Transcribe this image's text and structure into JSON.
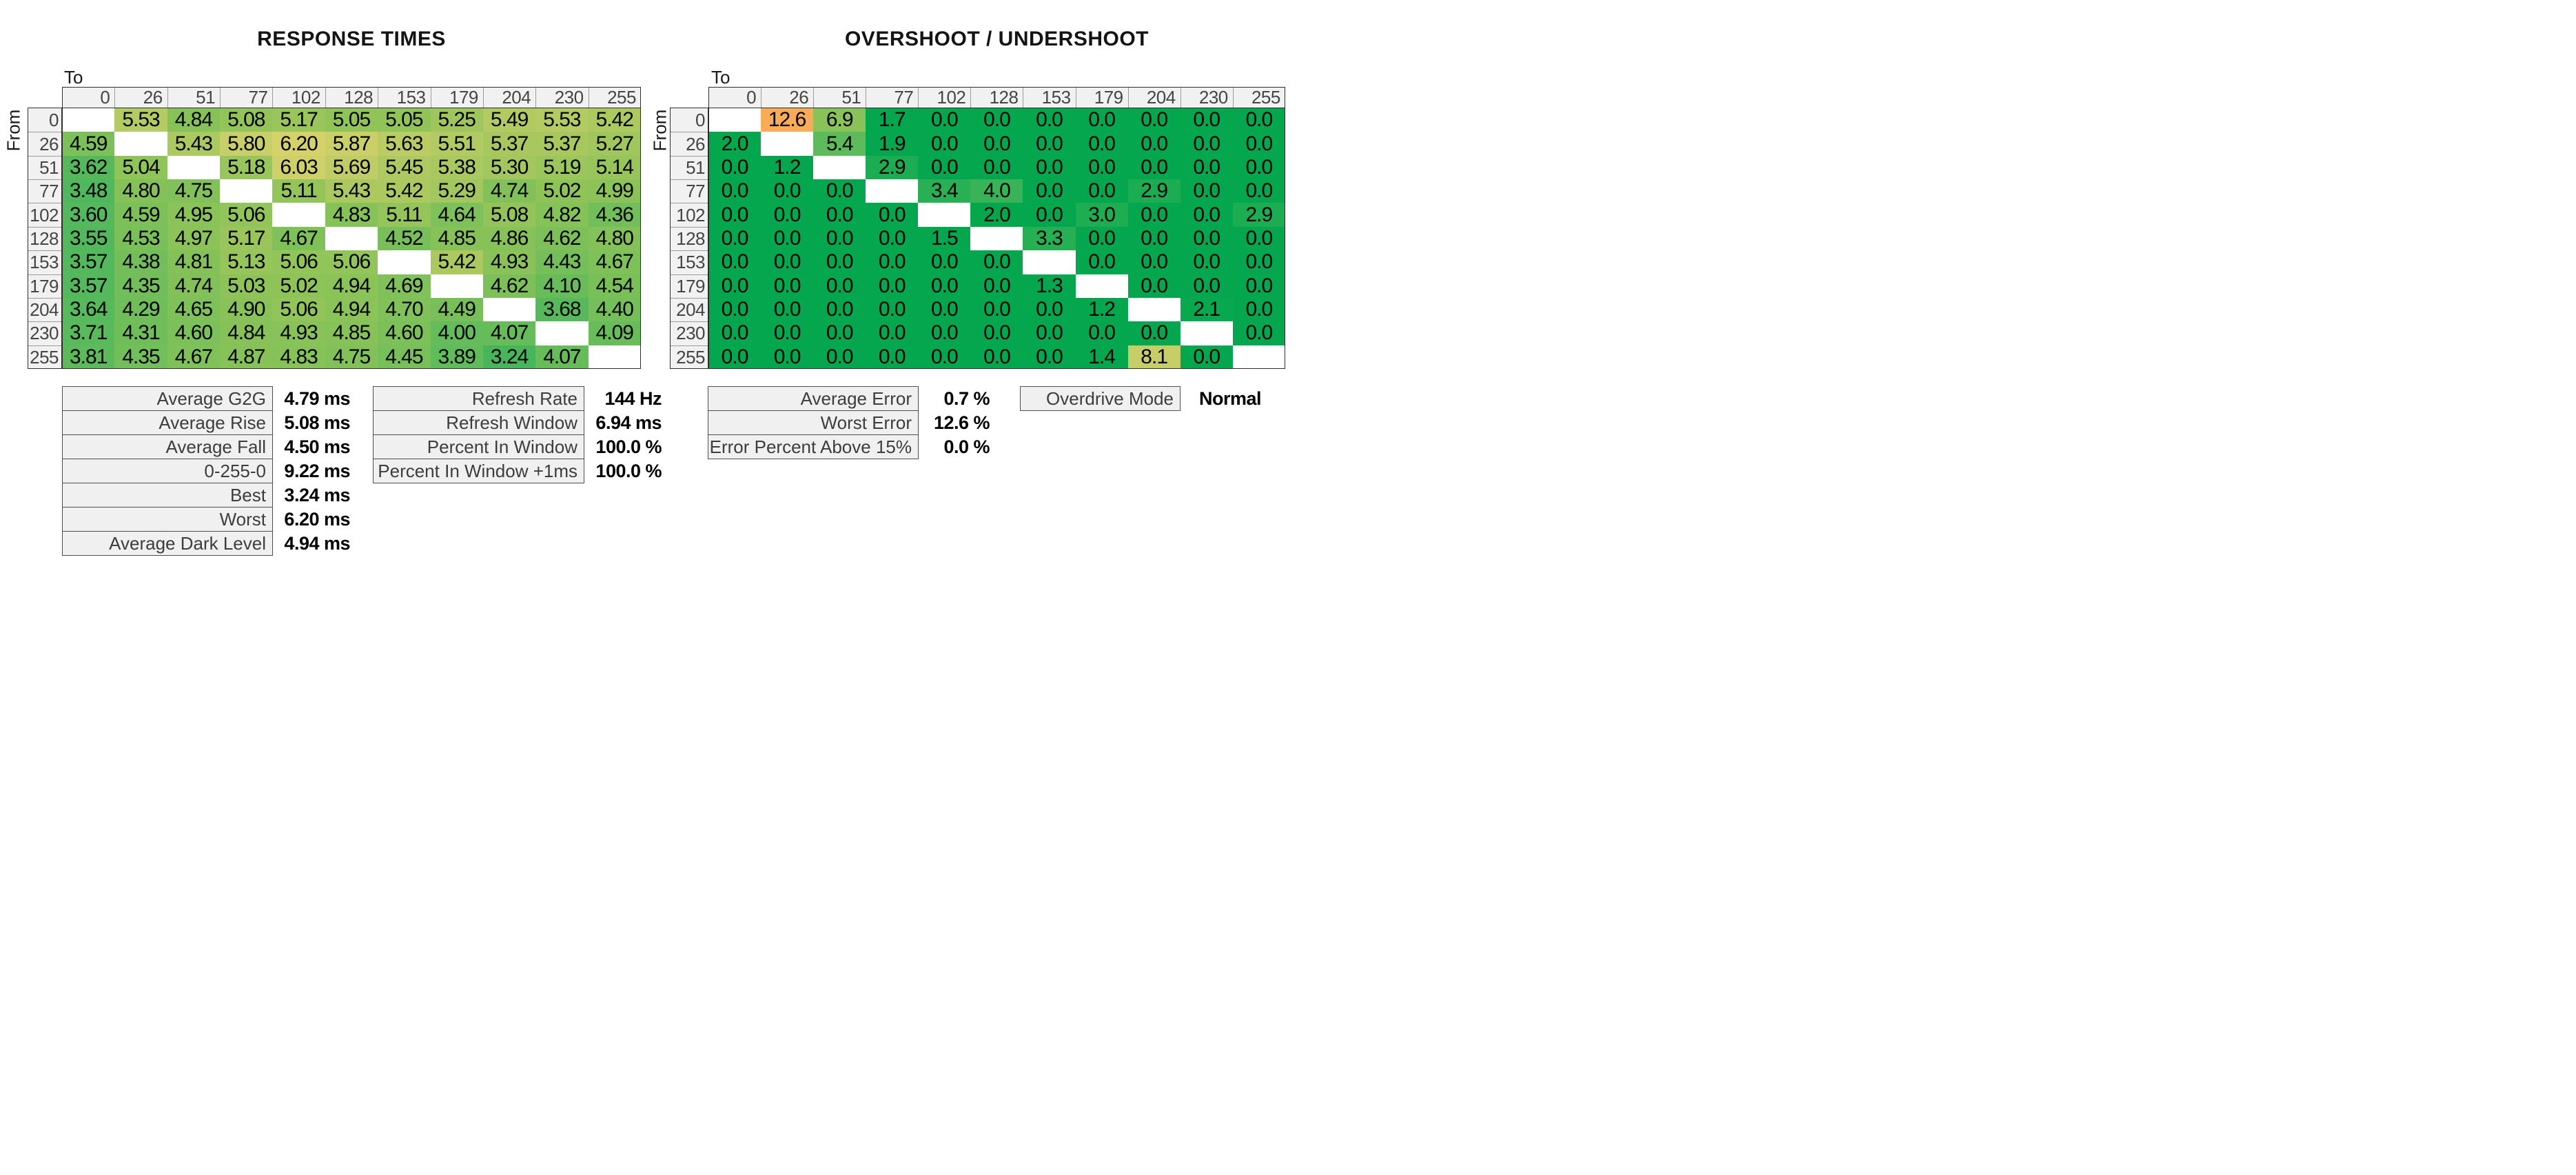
{
  "colors": {
    "base_green": "#04a74d",
    "mid_yellow_green": "#d4d168",
    "warning_orange": "#f8ab52",
    "header_bg": "#f1f1f1",
    "label_text": "#3d3d3d",
    "diagonal_blank": "#ffffff"
  },
  "chart_data": [
    {
      "type": "heatmap",
      "title": "RESPONSE TIMES",
      "unit": "ms",
      "x_axis_label": "To",
      "y_axis_label": "From",
      "levels": [
        "0",
        "26",
        "51",
        "77",
        "102",
        "128",
        "153",
        "179",
        "204",
        "230",
        "255"
      ],
      "color_scale": "green-yellow-orange, low=green",
      "color_scale_max": 10,
      "rows": [
        [
          "",
          "5.53",
          "4.84",
          "5.08",
          "5.17",
          "5.05",
          "5.05",
          "5.25",
          "5.49",
          "5.53",
          "5.42"
        ],
        [
          "4.59",
          "",
          "5.43",
          "5.80",
          "6.20",
          "5.87",
          "5.63",
          "5.51",
          "5.37",
          "5.37",
          "5.27"
        ],
        [
          "3.62",
          "5.04",
          "",
          "5.18",
          "6.03",
          "5.69",
          "5.45",
          "5.38",
          "5.30",
          "5.19",
          "5.14"
        ],
        [
          "3.48",
          "4.80",
          "4.75",
          "",
          "5.11",
          "5.43",
          "5.42",
          "5.29",
          "4.74",
          "5.02",
          "4.99"
        ],
        [
          "3.60",
          "4.59",
          "4.95",
          "5.06",
          "",
          "4.83",
          "5.11",
          "4.64",
          "5.08",
          "4.82",
          "4.36"
        ],
        [
          "3.55",
          "4.53",
          "4.97",
          "5.17",
          "4.67",
          "",
          "4.52",
          "4.85",
          "4.86",
          "4.62",
          "4.80"
        ],
        [
          "3.57",
          "4.38",
          "4.81",
          "5.13",
          "5.06",
          "5.06",
          "",
          "5.42",
          "4.93",
          "4.43",
          "4.67"
        ],
        [
          "3.57",
          "4.35",
          "4.74",
          "5.03",
          "5.02",
          "4.94",
          "4.69",
          "",
          "4.62",
          "4.10",
          "4.54"
        ],
        [
          "3.64",
          "4.29",
          "4.65",
          "4.90",
          "5.06",
          "4.94",
          "4.70",
          "4.49",
          "",
          "3.68",
          "4.40"
        ],
        [
          "3.71",
          "4.31",
          "4.60",
          "4.84",
          "4.93",
          "4.85",
          "4.60",
          "4.00",
          "4.07",
          "",
          "4.09"
        ],
        [
          "3.81",
          "4.35",
          "4.67",
          "4.87",
          "4.83",
          "4.75",
          "4.45",
          "3.89",
          "3.24",
          "4.07",
          ""
        ]
      ]
    },
    {
      "type": "heatmap",
      "title": "OVERSHOOT / UNDERSHOOT",
      "unit": "%",
      "x_axis_label": "To",
      "y_axis_label": "From",
      "levels": [
        "0",
        "26",
        "51",
        "77",
        "102",
        "128",
        "153",
        "179",
        "204",
        "230",
        "255"
      ],
      "color_scale": "green-yellow-orange, low=green",
      "color_scale_max": 14,
      "rows": [
        [
          "",
          "12.6",
          "6.9",
          "1.7",
          "0.0",
          "0.0",
          "0.0",
          "0.0",
          "0.0",
          "0.0",
          "0.0"
        ],
        [
          "2.0",
          "",
          "5.4",
          "1.9",
          "0.0",
          "0.0",
          "0.0",
          "0.0",
          "0.0",
          "0.0",
          "0.0"
        ],
        [
          "0.0",
          "1.2",
          "",
          "2.9",
          "0.0",
          "0.0",
          "0.0",
          "0.0",
          "0.0",
          "0.0",
          "0.0"
        ],
        [
          "0.0",
          "0.0",
          "0.0",
          "",
          "3.4",
          "4.0",
          "0.0",
          "0.0",
          "2.9",
          "0.0",
          "0.0"
        ],
        [
          "0.0",
          "0.0",
          "0.0",
          "0.0",
          "",
          "2.0",
          "0.0",
          "3.0",
          "0.0",
          "0.0",
          "2.9"
        ],
        [
          "0.0",
          "0.0",
          "0.0",
          "0.0",
          "1.5",
          "",
          "3.3",
          "0.0",
          "0.0",
          "0.0",
          "0.0"
        ],
        [
          "0.0",
          "0.0",
          "0.0",
          "0.0",
          "0.0",
          "0.0",
          "",
          "0.0",
          "0.0",
          "0.0",
          "0.0"
        ],
        [
          "0.0",
          "0.0",
          "0.0",
          "0.0",
          "0.0",
          "0.0",
          "1.3",
          "",
          "0.0",
          "0.0",
          "0.0"
        ],
        [
          "0.0",
          "0.0",
          "0.0",
          "0.0",
          "0.0",
          "0.0",
          "0.0",
          "1.2",
          "",
          "2.1",
          "0.0"
        ],
        [
          "0.0",
          "0.0",
          "0.0",
          "0.0",
          "0.0",
          "0.0",
          "0.0",
          "0.0",
          "0.0",
          "",
          "0.0"
        ],
        [
          "0.0",
          "0.0",
          "0.0",
          "0.0",
          "0.0",
          "0.0",
          "0.0",
          "1.4",
          "8.1",
          "0.0",
          ""
        ]
      ]
    },
    {
      "type": "table",
      "name": "response-summary",
      "rows": [
        {
          "label": "Average G2G",
          "value": "4.79 ms"
        },
        {
          "label": "Average Rise",
          "value": "5.08 ms"
        },
        {
          "label": "Average Fall",
          "value": "4.50 ms"
        },
        {
          "label": "0-255-0",
          "value": "9.22 ms"
        },
        {
          "label": "Best",
          "value": "3.24 ms"
        },
        {
          "label": "Worst",
          "value": "6.20 ms"
        },
        {
          "label": "Average Dark Level",
          "value": "4.94 ms"
        }
      ]
    },
    {
      "type": "table",
      "name": "refresh-summary",
      "rows": [
        {
          "label": "Refresh Rate",
          "value": "144 Hz"
        },
        {
          "label": "Refresh Window",
          "value": "6.94 ms"
        },
        {
          "label": "Percent In Window",
          "value": "100.0 %"
        },
        {
          "label": "Percent In Window +1ms",
          "value": "100.0 %"
        }
      ]
    },
    {
      "type": "table",
      "name": "error-summary",
      "rows": [
        {
          "label": "Average Error",
          "value": "0.7 %"
        },
        {
          "label": "Worst Error",
          "value": "12.6 %"
        },
        {
          "label": "Error Percent Above 15%",
          "value": "0.0 %"
        }
      ]
    },
    {
      "type": "table",
      "name": "overdrive-summary",
      "rows": [
        {
          "label": "Overdrive Mode",
          "value": "Normal"
        }
      ]
    }
  ]
}
